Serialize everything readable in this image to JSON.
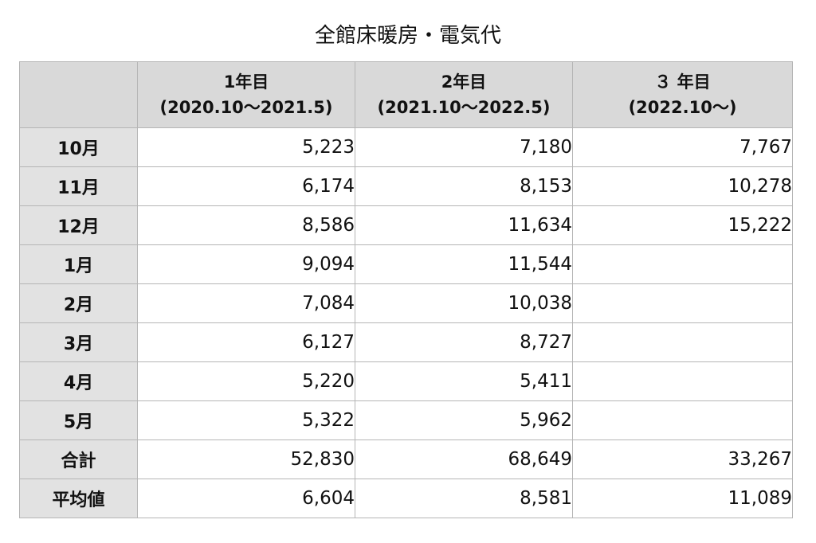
{
  "title": "全館床暖房・電気代",
  "chart_data": {
    "type": "table",
    "title": "全館床暖房・電気代",
    "columns": [
      {
        "line1": "",
        "line2": ""
      },
      {
        "line1": "1年目",
        "line2": "(2020.10〜2021.5)"
      },
      {
        "line1": "2年目",
        "line2": "(2021.10〜2022.5)"
      },
      {
        "line1": "３ 年目",
        "line2": "(2022.10〜)"
      }
    ],
    "rows": [
      {
        "label": "10月",
        "values": [
          "5,223",
          "7,180",
          "7,767"
        ]
      },
      {
        "label": "11月",
        "values": [
          "6,174",
          "8,153",
          "10,278"
        ]
      },
      {
        "label": "12月",
        "values": [
          "8,586",
          "11,634",
          "15,222"
        ]
      },
      {
        "label": "1月",
        "values": [
          "9,094",
          "11,544",
          ""
        ]
      },
      {
        "label": "2月",
        "values": [
          "7,084",
          "10,038",
          ""
        ]
      },
      {
        "label": "3月",
        "values": [
          "6,127",
          "8,727",
          ""
        ]
      },
      {
        "label": "4月",
        "values": [
          "5,220",
          "5,411",
          ""
        ]
      },
      {
        "label": "5月",
        "values": [
          "5,322",
          "5,962",
          ""
        ]
      },
      {
        "label": "合計",
        "values": [
          "52,830",
          "68,649",
          "33,267"
        ]
      },
      {
        "label": "平均値",
        "values": [
          "6,604",
          "8,581",
          "11,089"
        ]
      }
    ]
  }
}
